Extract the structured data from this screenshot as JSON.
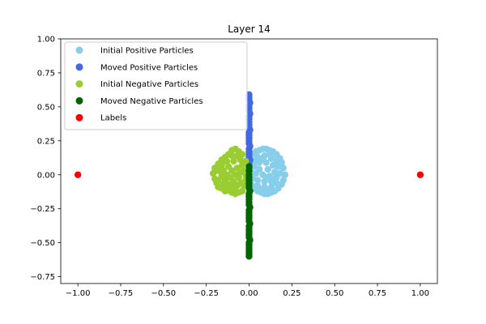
{
  "chart_data": {
    "type": "scatter",
    "title": "Layer 14",
    "xlabel": "",
    "ylabel": "",
    "xlim": [
      -1.1,
      1.1
    ],
    "ylim": [
      -0.8,
      1.0
    ],
    "x_ticks": [
      -1.0,
      -0.75,
      -0.5,
      -0.25,
      0.0,
      0.25,
      0.5,
      0.75,
      1.0
    ],
    "x_tick_labels": [
      "−1.00",
      "−0.75",
      "−0.50",
      "−0.25",
      "0.00",
      "0.25",
      "0.50",
      "0.75",
      "1.00"
    ],
    "y_ticks": [
      -0.75,
      -0.5,
      -0.25,
      0.0,
      0.25,
      0.5,
      0.75,
      1.0
    ],
    "y_tick_labels": [
      "−0.75",
      "−0.50",
      "−0.25",
      "0.00",
      "0.25",
      "0.50",
      "0.75",
      "1.00"
    ],
    "grid": false,
    "legend_position": "upper-left",
    "series": [
      {
        "name": "Initial Positive Particles",
        "color": "#87ceeb",
        "points": [
          [
            0.02,
            0.15
          ],
          [
            0.04,
            0.17
          ],
          [
            0.06,
            0.18
          ],
          [
            0.08,
            0.19
          ],
          [
            0.1,
            0.19
          ],
          [
            0.12,
            0.18
          ],
          [
            0.14,
            0.17
          ],
          [
            0.16,
            0.15
          ],
          [
            0.18,
            0.12
          ],
          [
            0.19,
            0.09
          ],
          [
            0.2,
            0.05
          ],
          [
            0.21,
            0.0
          ],
          [
            0.2,
            -0.04
          ],
          [
            0.19,
            -0.07
          ],
          [
            0.17,
            -0.1
          ],
          [
            0.15,
            -0.12
          ],
          [
            0.13,
            -0.13
          ],
          [
            0.11,
            -0.14
          ],
          [
            0.09,
            -0.14
          ],
          [
            0.07,
            -0.13
          ],
          [
            0.05,
            -0.12
          ],
          [
            0.03,
            -0.1
          ],
          [
            0.02,
            -0.08
          ],
          [
            0.05,
            0.13
          ],
          [
            0.09,
            0.14
          ],
          [
            0.13,
            0.12
          ],
          [
            0.16,
            0.1
          ],
          [
            0.17,
            0.06
          ],
          [
            0.14,
            0.07
          ],
          [
            0.1,
            0.09
          ],
          [
            0.06,
            0.09
          ],
          [
            0.03,
            0.06
          ],
          [
            0.06,
            0.04
          ],
          [
            0.11,
            0.04
          ],
          [
            0.15,
            0.02
          ],
          [
            0.18,
            0.01
          ],
          [
            0.16,
            -0.02
          ],
          [
            0.12,
            -0.01
          ],
          [
            0.08,
            0.0
          ],
          [
            0.04,
            0.01
          ],
          [
            0.05,
            -0.04
          ],
          [
            0.09,
            -0.05
          ],
          [
            0.13,
            -0.05
          ],
          [
            0.16,
            -0.06
          ],
          [
            0.13,
            -0.09
          ],
          [
            0.09,
            -0.09
          ],
          [
            0.05,
            -0.08
          ],
          [
            0.07,
            -0.11
          ],
          [
            0.11,
            -0.11
          ],
          [
            0.03,
            0.1
          ],
          [
            0.08,
            0.12
          ],
          [
            0.12,
            0.15
          ],
          [
            0.17,
            0.12
          ],
          [
            0.1,
            -0.02
          ],
          [
            0.14,
            -0.03
          ],
          [
            0.01,
            0.02
          ],
          [
            0.02,
            -0.03
          ]
        ]
      },
      {
        "name": "Moved Positive Particles",
        "color": "#4169e1",
        "points": [
          [
            0.0,
            0.59
          ],
          [
            0.0,
            0.57
          ],
          [
            0.0,
            0.55
          ],
          [
            0.005,
            0.53
          ],
          [
            0.0,
            0.51
          ],
          [
            0.0,
            0.49
          ],
          [
            0.0,
            0.47
          ],
          [
            0.005,
            0.45
          ],
          [
            0.0,
            0.43
          ],
          [
            0.0,
            0.41
          ],
          [
            0.0,
            0.39
          ],
          [
            0.0,
            0.37
          ],
          [
            0.0,
            0.35
          ],
          [
            0.005,
            0.33
          ],
          [
            0.0,
            0.31
          ],
          [
            0.0,
            0.29
          ],
          [
            0.0,
            0.27
          ],
          [
            0.0,
            0.25
          ],
          [
            0.0,
            0.23
          ],
          [
            0.005,
            0.21
          ],
          [
            0.0,
            0.19
          ],
          [
            0.0,
            0.17
          ],
          [
            0.0,
            0.15
          ],
          [
            0.0,
            0.13
          ],
          [
            0.005,
            0.11
          ],
          [
            0.0,
            0.09
          ],
          [
            0.0,
            0.07
          ],
          [
            0.0,
            0.05
          ],
          [
            0.0,
            0.03
          ]
        ]
      },
      {
        "name": "Initial Negative Particles",
        "color": "#9acd32",
        "points": [
          [
            -0.06,
            0.17
          ],
          [
            -0.08,
            0.19
          ],
          [
            -0.1,
            0.18
          ],
          [
            -0.12,
            0.15
          ],
          [
            -0.14,
            0.13
          ],
          [
            -0.16,
            0.11
          ],
          [
            -0.18,
            0.08
          ],
          [
            -0.2,
            0.05
          ],
          [
            -0.21,
            0.01
          ],
          [
            -0.2,
            -0.03
          ],
          [
            -0.19,
            -0.06
          ],
          [
            -0.18,
            -0.09
          ],
          [
            -0.16,
            -0.1
          ],
          [
            -0.14,
            -0.12
          ],
          [
            -0.12,
            -0.11
          ],
          [
            -0.1,
            -0.13
          ],
          [
            -0.08,
            -0.14
          ],
          [
            -0.06,
            -0.13
          ],
          [
            -0.04,
            -0.12
          ],
          [
            -0.03,
            -0.08
          ],
          [
            -0.05,
            -0.06
          ],
          [
            -0.07,
            0.14
          ],
          [
            -0.1,
            0.14
          ],
          [
            -0.13,
            0.1
          ],
          [
            -0.16,
            0.07
          ],
          [
            -0.18,
            0.03
          ],
          [
            -0.15,
            0.03
          ],
          [
            -0.12,
            0.06
          ],
          [
            -0.09,
            0.1
          ],
          [
            -0.05,
            0.11
          ],
          [
            -0.04,
            0.07
          ],
          [
            -0.07,
            0.05
          ],
          [
            -0.1,
            0.03
          ],
          [
            -0.13,
            0.0
          ],
          [
            -0.16,
            -0.01
          ],
          [
            -0.18,
            -0.04
          ],
          [
            -0.14,
            -0.04
          ],
          [
            -0.11,
            -0.02
          ],
          [
            -0.08,
            0.0
          ],
          [
            -0.05,
            0.02
          ],
          [
            -0.03,
            0.03
          ],
          [
            -0.06,
            -0.02
          ],
          [
            -0.09,
            -0.05
          ],
          [
            -0.12,
            -0.07
          ],
          [
            -0.15,
            -0.07
          ],
          [
            -0.13,
            -0.09
          ],
          [
            -0.1,
            -0.09
          ],
          [
            -0.07,
            -0.08
          ],
          [
            -0.08,
            -0.11
          ],
          [
            -0.11,
            -0.12
          ],
          [
            -0.02,
            0.1
          ],
          [
            -0.04,
            0.15
          ],
          [
            -0.02,
            0.0
          ],
          [
            -0.02,
            -0.04
          ]
        ]
      },
      {
        "name": "Moved Negative Particles",
        "color": "#006400",
        "points": [
          [
            0.0,
            0.06
          ],
          [
            0.0,
            0.03
          ],
          [
            0.0,
            0.0
          ],
          [
            0.0,
            -0.02
          ],
          [
            0.0,
            -0.04
          ],
          [
            0.0,
            -0.06
          ],
          [
            0.0,
            -0.08
          ],
          [
            0.0,
            -0.1
          ],
          [
            0.005,
            -0.12
          ],
          [
            0.0,
            -0.14
          ],
          [
            0.0,
            -0.16
          ],
          [
            0.0,
            -0.18
          ],
          [
            0.0,
            -0.2
          ],
          [
            0.0,
            -0.22
          ],
          [
            0.005,
            -0.24
          ],
          [
            0.0,
            -0.26
          ],
          [
            0.0,
            -0.28
          ],
          [
            0.0,
            -0.3
          ],
          [
            0.0,
            -0.32
          ],
          [
            0.0,
            -0.34
          ],
          [
            0.005,
            -0.36
          ],
          [
            0.0,
            -0.38
          ],
          [
            0.0,
            -0.4
          ],
          [
            0.0,
            -0.42
          ],
          [
            0.0,
            -0.44
          ],
          [
            0.0,
            -0.46
          ],
          [
            0.005,
            -0.48
          ],
          [
            0.0,
            -0.5
          ],
          [
            0.0,
            -0.52
          ],
          [
            0.0,
            -0.54
          ],
          [
            0.0,
            -0.56
          ],
          [
            0.0,
            -0.58
          ],
          [
            0.0,
            -0.6
          ]
        ]
      },
      {
        "name": "Labels",
        "color": "#ff0000",
        "points": [
          [
            -1.0,
            0.0
          ],
          [
            1.0,
            0.0
          ]
        ]
      }
    ]
  }
}
